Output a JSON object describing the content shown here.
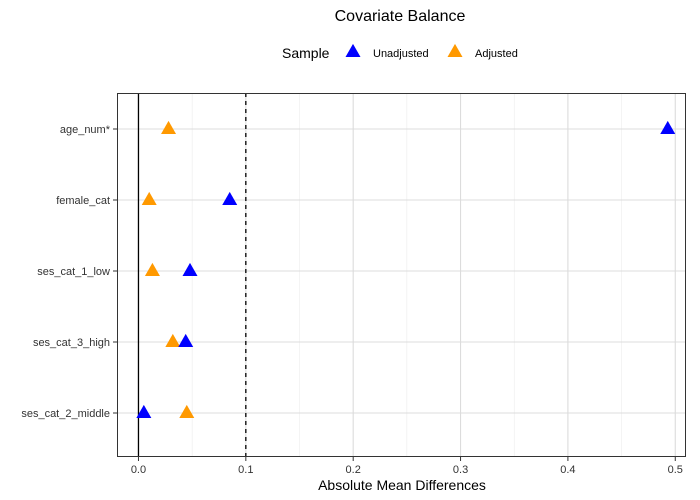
{
  "chart_data": {
    "type": "scatter",
    "title": "Covariate Balance",
    "xlabel": "Absolute Mean Differences",
    "ylabel": "",
    "xlim": [
      -0.02,
      0.51
    ],
    "x_ticks": [
      "0.0",
      "0.1",
      "0.2",
      "0.3",
      "0.4",
      "0.5"
    ],
    "x_tick_values": [
      0,
      0.1,
      0.2,
      0.3,
      0.4,
      0.5
    ],
    "categories": [
      "age_num*",
      "female_cat",
      "ses_cat_1_low",
      "ses_cat_3_high",
      "ses_cat_2_middle"
    ],
    "threshold": 0.1,
    "legend": {
      "title": "Sample",
      "position": "top"
    },
    "grid": true,
    "series": [
      {
        "name": "Unadjusted",
        "color": "#0000ff",
        "marker": "triangle",
        "values": [
          0.493,
          0.085,
          0.048,
          0.044,
          0.005
        ]
      },
      {
        "name": "Adjusted",
        "color": "#ff9900",
        "marker": "triangle",
        "values": [
          0.028,
          0.01,
          0.013,
          0.032,
          0.045
        ]
      }
    ]
  }
}
